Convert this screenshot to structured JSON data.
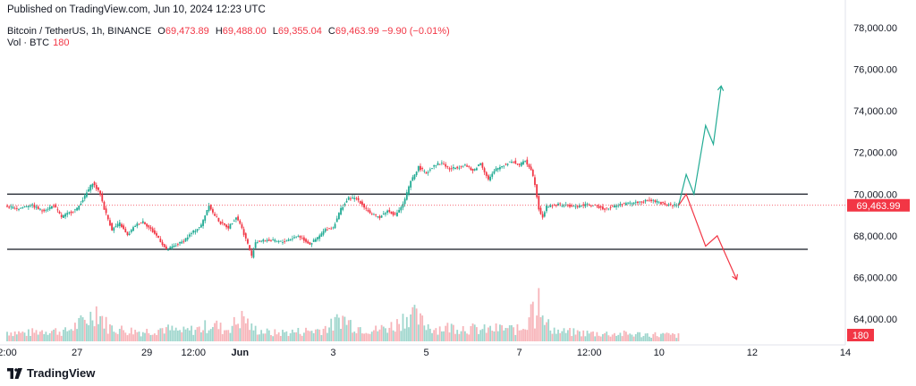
{
  "header": {
    "published": "Published on TradingView.com, Jun 10, 2024 12:23 UTC"
  },
  "legend": {
    "symbol": "Bitcoin / TetherUS, 1h, BINANCE",
    "open_label": "O",
    "open": "69,473.89",
    "high_label": "H",
    "high": "69,488.00",
    "low_label": "L",
    "low": "69,355.04",
    "close_label": "C",
    "close": "69,463.99",
    "change": "−9.90 (−0.01%)",
    "vol_label": "Vol · BTC",
    "vol_value": "180"
  },
  "brand": {
    "name": "TradingView"
  },
  "colors": {
    "up": "#22ab94",
    "down": "#f23645",
    "vol_up": "#9fd6cd",
    "vol_down": "#f7b4b9",
    "line": "#131722",
    "grid": "#f0f3fa",
    "arrow_up": "#22ab94",
    "arrow_down": "#f23645"
  },
  "chart_data": {
    "type": "candlestick",
    "symbol": "Bitcoin / TetherUS",
    "interval": "1h",
    "exchange": "BINANCE",
    "ylim": [
      63000,
      78500
    ],
    "y_ticks": [
      "78,000.00",
      "76,000.00",
      "74,000.00",
      "72,000.00",
      "70,000.00",
      "68,000.00",
      "66,000.00",
      "64,000.00"
    ],
    "y_tick_values": [
      78000,
      76000,
      74000,
      72000,
      70000,
      68000,
      66000,
      64000
    ],
    "x_ticks": [
      "2:00",
      "27",
      "29",
      "12:00",
      "Jun",
      "3",
      "5",
      "7",
      "12:00",
      "10",
      "12",
      "14"
    ],
    "x_tick_index": [
      0,
      36,
      72,
      96,
      120,
      168,
      216,
      264,
      300,
      336,
      384,
      432
    ],
    "last_price": "69,463.99",
    "last_price_value": 69463.99,
    "last_volume": "180",
    "horizontal_lines": [
      70000,
      67350
    ],
    "price_path": [
      [
        0,
        69400
      ],
      [
        6,
        69300
      ],
      [
        12,
        69500
      ],
      [
        18,
        69200
      ],
      [
        24,
        69450
      ],
      [
        28,
        68900
      ],
      [
        32,
        69100
      ],
      [
        36,
        69300
      ],
      [
        40,
        69900
      ],
      [
        44,
        70550
      ],
      [
        48,
        70000
      ],
      [
        50,
        69300
      ],
      [
        54,
        68300
      ],
      [
        58,
        68600
      ],
      [
        62,
        68000
      ],
      [
        66,
        68500
      ],
      [
        70,
        68700
      ],
      [
        74,
        68300
      ],
      [
        78,
        67900
      ],
      [
        82,
        67300
      ],
      [
        86,
        67500
      ],
      [
        90,
        67700
      ],
      [
        96,
        68200
      ],
      [
        100,
        68500
      ],
      [
        104,
        69500
      ],
      [
        106,
        69100
      ],
      [
        110,
        68600
      ],
      [
        114,
        68400
      ],
      [
        118,
        68900
      ],
      [
        120,
        68600
      ],
      [
        124,
        67600
      ],
      [
        126,
        67000
      ],
      [
        128,
        67700
      ],
      [
        134,
        67800
      ],
      [
        142,
        67700
      ],
      [
        150,
        68000
      ],
      [
        156,
        67600
      ],
      [
        160,
        67900
      ],
      [
        164,
        68300
      ],
      [
        168,
        68400
      ],
      [
        172,
        69300
      ],
      [
        176,
        69800
      ],
      [
        180,
        69800
      ],
      [
        184,
        69400
      ],
      [
        188,
        69000
      ],
      [
        192,
        68900
      ],
      [
        196,
        69200
      ],
      [
        200,
        69000
      ],
      [
        204,
        69500
      ],
      [
        208,
        70600
      ],
      [
        212,
        71300
      ],
      [
        216,
        71000
      ],
      [
        220,
        71400
      ],
      [
        224,
        71500
      ],
      [
        228,
        71200
      ],
      [
        232,
        71300
      ],
      [
        236,
        71400
      ],
      [
        240,
        71100
      ],
      [
        244,
        71500
      ],
      [
        248,
        70700
      ],
      [
        252,
        71200
      ],
      [
        256,
        71400
      ],
      [
        260,
        71600
      ],
      [
        264,
        71400
      ],
      [
        267,
        71600
      ],
      [
        270,
        71200
      ],
      [
        272,
        70500
      ],
      [
        274,
        69300
      ],
      [
        276,
        68900
      ],
      [
        278,
        69400
      ],
      [
        284,
        69500
      ],
      [
        292,
        69400
      ],
      [
        300,
        69500
      ],
      [
        308,
        69300
      ],
      [
        316,
        69500
      ],
      [
        324,
        69600
      ],
      [
        332,
        69700
      ],
      [
        340,
        69500
      ],
      [
        346,
        69464
      ]
    ],
    "volume_path": [
      [
        0,
        12
      ],
      [
        10,
        10
      ],
      [
        20,
        14
      ],
      [
        30,
        12
      ],
      [
        42,
        28
      ],
      [
        46,
        40
      ],
      [
        52,
        18
      ],
      [
        60,
        14
      ],
      [
        70,
        12
      ],
      [
        80,
        16
      ],
      [
        90,
        12
      ],
      [
        100,
        16
      ],
      [
        106,
        22
      ],
      [
        112,
        14
      ],
      [
        120,
        26
      ],
      [
        122,
        30
      ],
      [
        126,
        16
      ],
      [
        136,
        10
      ],
      [
        150,
        12
      ],
      [
        160,
        14
      ],
      [
        168,
        20
      ],
      [
        172,
        30
      ],
      [
        180,
        18
      ],
      [
        190,
        14
      ],
      [
        200,
        20
      ],
      [
        208,
        36
      ],
      [
        212,
        26
      ],
      [
        220,
        16
      ],
      [
        232,
        18
      ],
      [
        244,
        14
      ],
      [
        256,
        16
      ],
      [
        264,
        14
      ],
      [
        268,
        22
      ],
      [
        270,
        55
      ],
      [
        272,
        28
      ],
      [
        274,
        80
      ],
      [
        276,
        24
      ],
      [
        284,
        12
      ],
      [
        300,
        10
      ],
      [
        320,
        9
      ],
      [
        340,
        8
      ],
      [
        346,
        7
      ]
    ],
    "projection_up": [
      [
        346,
        69450
      ],
      [
        350,
        70950
      ],
      [
        354,
        70000
      ],
      [
        360,
        73300
      ],
      [
        364,
        72400
      ],
      [
        368,
        75200
      ]
    ],
    "projection_down": [
      [
        346,
        69450
      ],
      [
        350,
        70000
      ],
      [
        360,
        67500
      ],
      [
        366,
        68000
      ],
      [
        376,
        65900
      ]
    ]
  }
}
